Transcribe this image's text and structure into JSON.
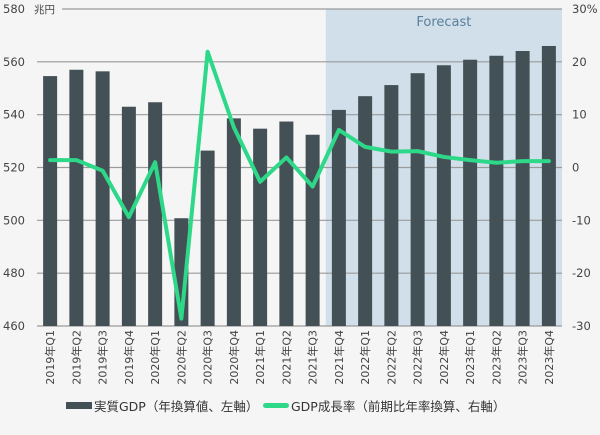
{
  "chart_data": {
    "type": "bar+line",
    "categories": [
      "2019年Q1",
      "2019年Q2",
      "2019年Q3",
      "2019年Q4",
      "2020年Q1",
      "2020年Q2",
      "2020年Q3",
      "2020年Q4",
      "2021年Q1",
      "2021年Q2",
      "2021年Q3",
      "2021年Q4",
      "2022年Q1",
      "2022年Q2",
      "2022年Q3",
      "2022年Q4",
      "2023年Q1",
      "2023年Q2",
      "2023年Q3",
      "2023年Q4"
    ],
    "series": [
      {
        "name": "実質GDP（年換算値、左軸）",
        "type": "bar",
        "axis": "left",
        "color": "#435055",
        "values": [
          554.6,
          557.0,
          556.4,
          543.0,
          544.7,
          500.8,
          526.4,
          538.6,
          534.7,
          537.4,
          532.4,
          541.8,
          547.0,
          551.2,
          555.7,
          558.7,
          560.8,
          562.3,
          564.1,
          566.0
        ]
      },
      {
        "name": "GDP成長率（前期比年率換算、右軸）",
        "type": "line",
        "axis": "right",
        "color": "#2ed889",
        "values": [
          1.4,
          1.4,
          -0.6,
          -9.4,
          1.0,
          -28.6,
          21.9,
          7.6,
          -2.7,
          1.9,
          -3.6,
          7.1,
          3.9,
          3.0,
          3.1,
          2.0,
          1.4,
          0.9,
          1.2,
          1.2
        ]
      }
    ],
    "left_axis": {
      "unit": "兆円",
      "ylim": [
        460,
        580
      ],
      "ticks": [
        "460",
        "480",
        "500",
        "520",
        "540",
        "560",
        "580"
      ]
    },
    "right_axis": {
      "ylim": [
        -30,
        30
      ],
      "ticks": [
        "-30",
        "-20",
        "-10",
        "0",
        "10",
        "20",
        "30%"
      ]
    },
    "forecast": {
      "label": "Forecast",
      "start": "2021年Q4",
      "end": "2023年Q4",
      "color": "#d0dfea"
    },
    "grid": true,
    "legend": "bottom"
  }
}
